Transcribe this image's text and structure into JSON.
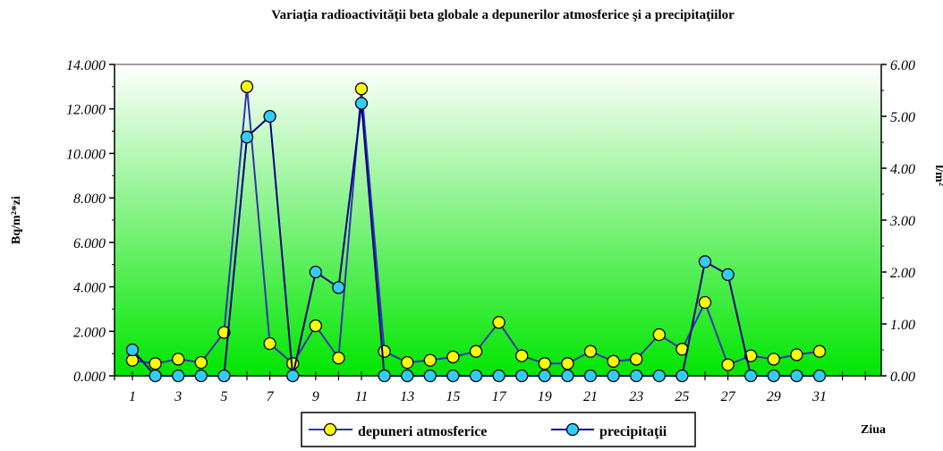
{
  "chart_data": {
    "type": "line",
    "title": "Variaţia radioactivităţii beta globale a depunerilor atmosferice şi a precipitaţiilor",
    "xlabel": "Ziua",
    "ylabel_left": "Bq/m²*zi",
    "ylabel_right": "l/m²",
    "x": [
      1,
      2,
      3,
      4,
      5,
      6,
      7,
      8,
      9,
      10,
      11,
      12,
      13,
      14,
      15,
      16,
      17,
      18,
      19,
      20,
      21,
      22,
      23,
      24,
      25,
      26,
      27,
      28,
      29,
      30,
      31
    ],
    "x_tick_labels": [
      "1",
      "3",
      "5",
      "7",
      "9",
      "11",
      "13",
      "15",
      "17",
      "19",
      "21",
      "23",
      "25",
      "27",
      "29",
      "31"
    ],
    "ylim_left": [
      0,
      14
    ],
    "ylim_right": [
      0,
      6
    ],
    "y_tick_labels_left": [
      "0.000",
      "2.000",
      "4.000",
      "6.000",
      "8.000",
      "10.000",
      "12.000",
      "14.000"
    ],
    "y_tick_labels_right": [
      "0.00",
      "1.00",
      "2.00",
      "3.00",
      "4.00",
      "5.00",
      "6.00"
    ],
    "background": "gradient white (top) to green (bottom)",
    "series": [
      {
        "name": "depuneri atmosferice",
        "axis": "left",
        "color": "#3333aa",
        "marker_color": "#ffff00",
        "values": [
          0.7,
          0.55,
          0.75,
          0.6,
          1.95,
          13.0,
          1.45,
          0.55,
          2.25,
          0.8,
          12.9,
          1.1,
          0.6,
          0.7,
          0.85,
          1.1,
          2.4,
          0.9,
          0.55,
          0.55,
          1.1,
          0.65,
          0.75,
          1.85,
          1.2,
          3.3,
          0.5,
          0.9,
          0.75,
          0.95,
          1.1
        ]
      },
      {
        "name": "precipitaţii",
        "axis": "right",
        "color": "#000080",
        "marker_color": "#33ccff",
        "values": [
          0.5,
          0,
          0,
          0,
          0,
          4.6,
          5.0,
          0,
          2.0,
          1.7,
          5.25,
          0,
          0,
          0,
          0,
          0,
          0,
          0,
          0,
          0,
          0,
          0,
          0,
          0,
          0,
          2.2,
          1.95,
          0,
          0,
          0,
          0
        ]
      }
    ],
    "legend_position": "bottom-center"
  }
}
